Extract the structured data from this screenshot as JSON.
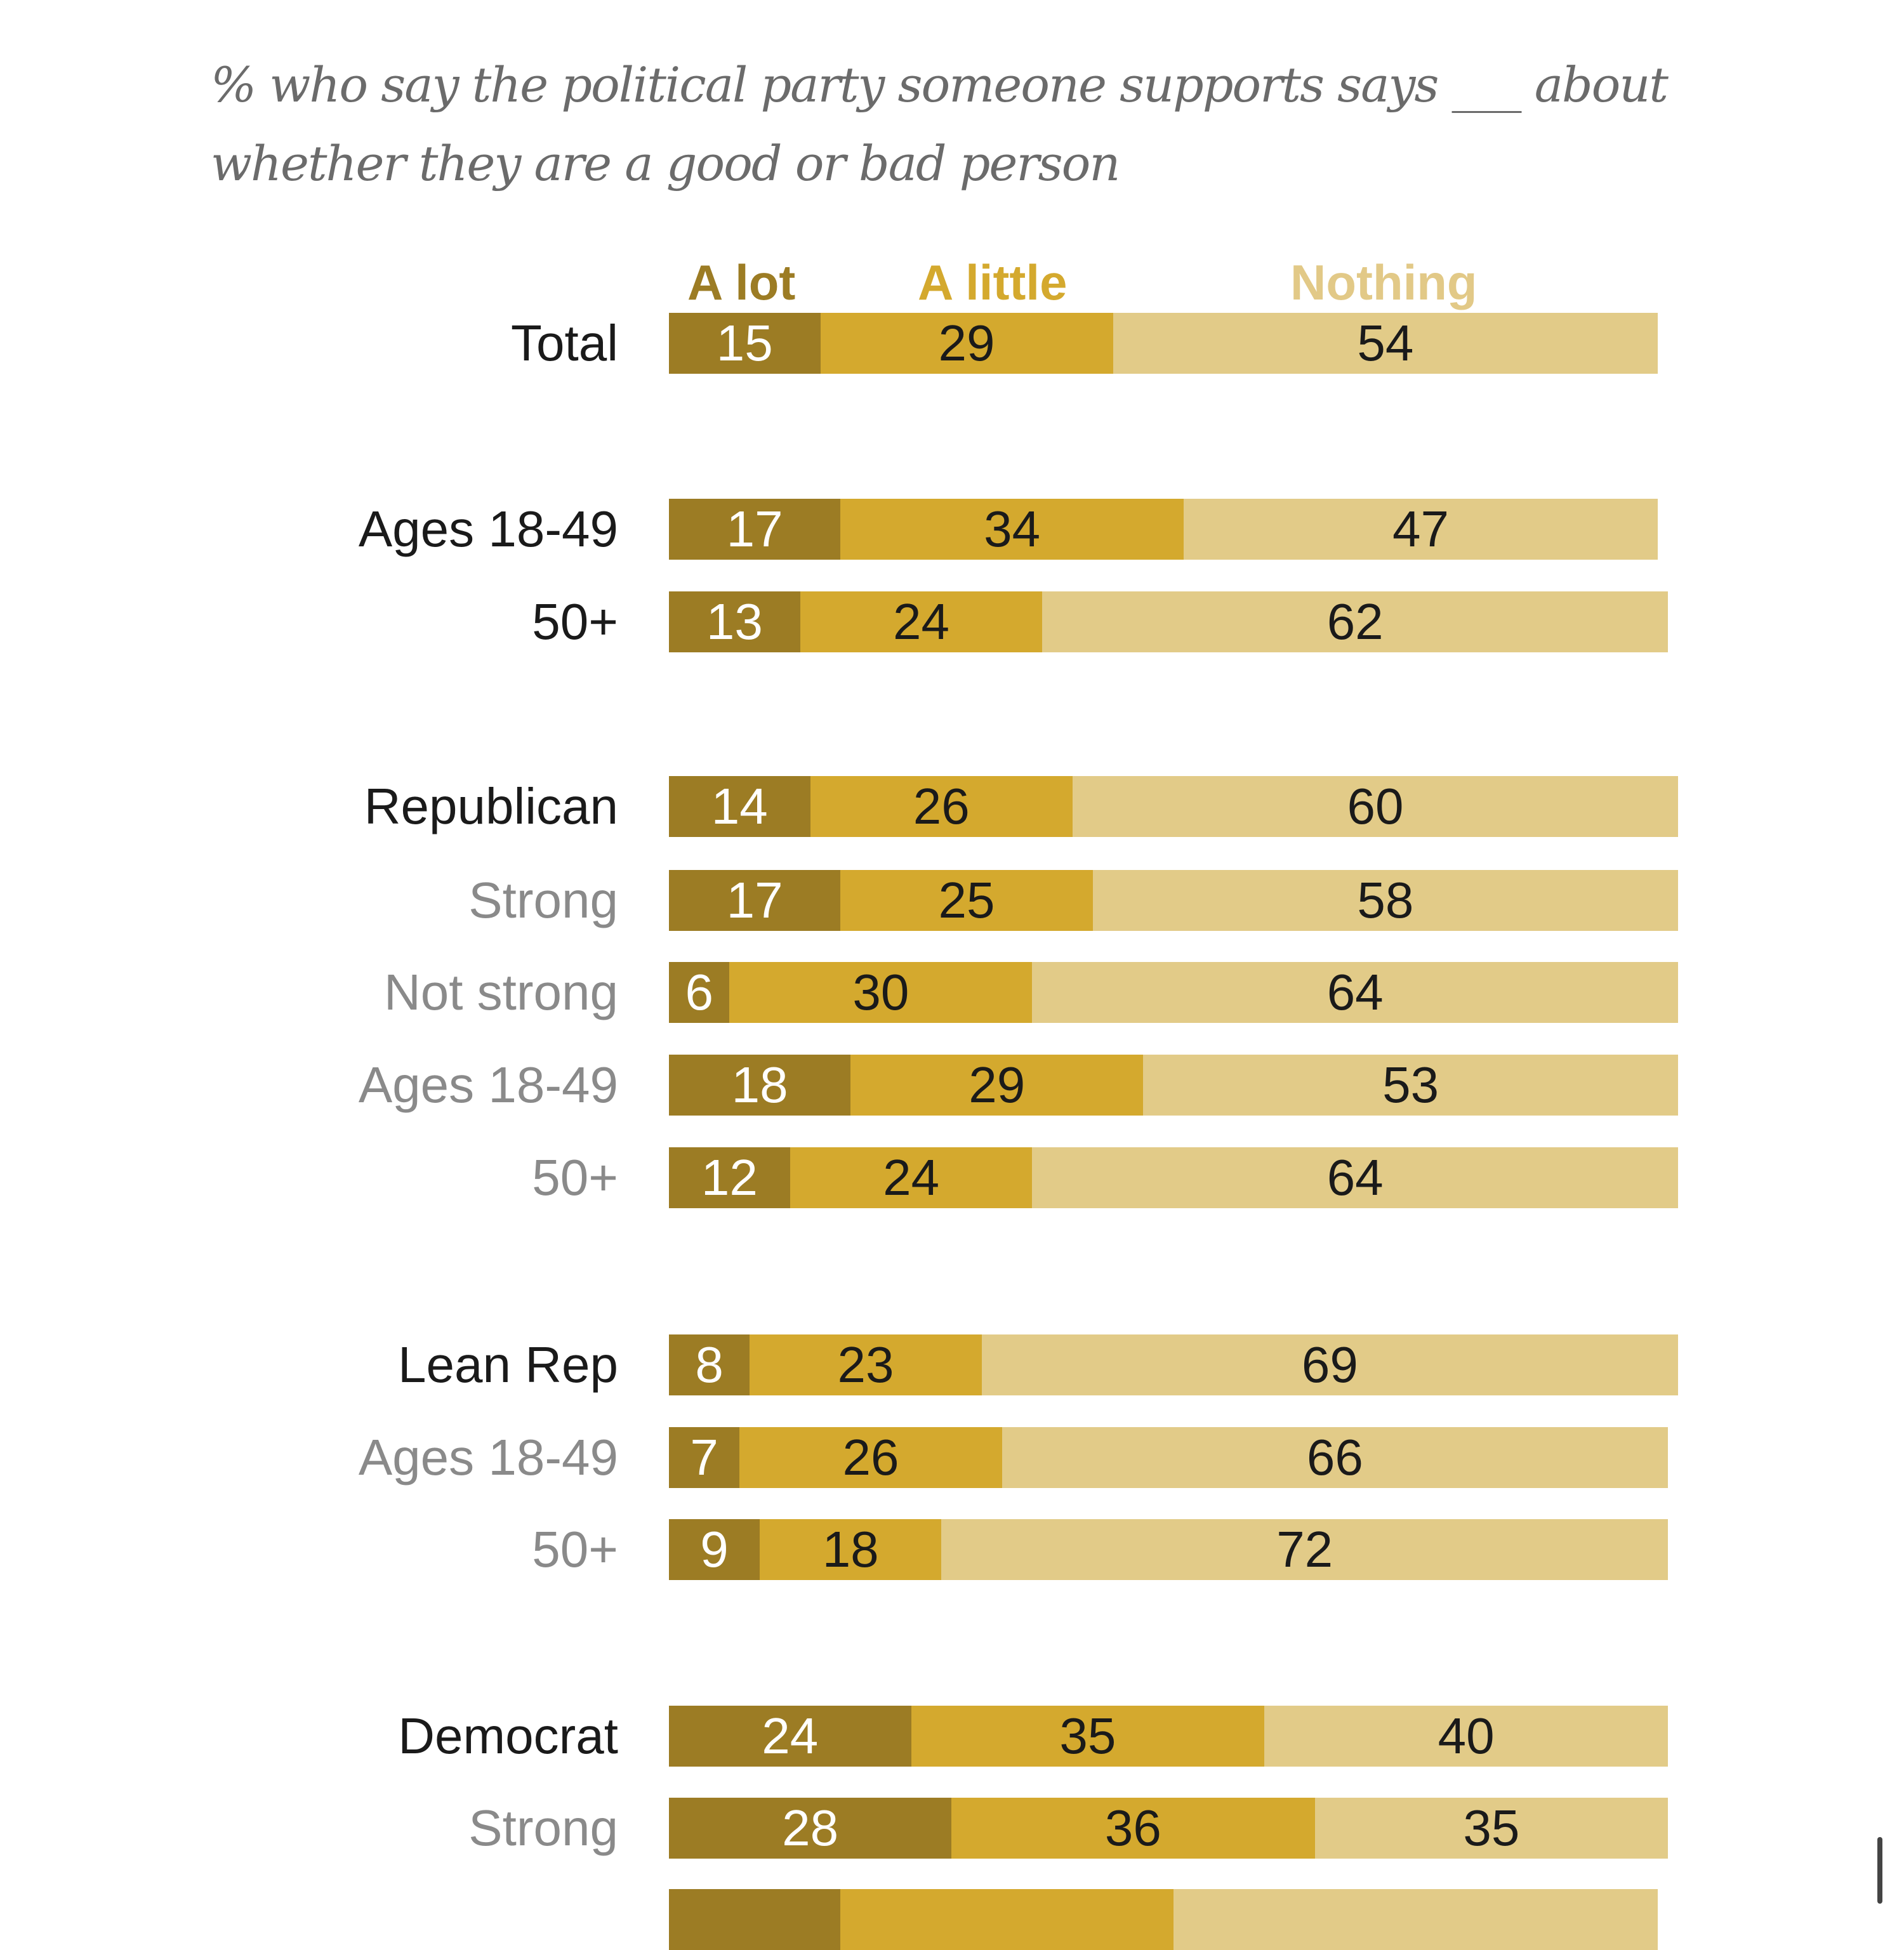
{
  "subtitle": "% who say the political party someone supports says ___ about whether they are a good or bad person",
  "colors": {
    "a_lot": "#9c7c24",
    "a_little": "#d4a92e",
    "nothing": "#e2cb88",
    "label_main": "#1a1a1a",
    "label_sub": "#8a8a8a"
  },
  "chart_data": {
    "type": "bar",
    "orientation": "horizontal-stacked",
    "title": "% who say the political party someone supports says ___ about whether they are a good or bad person",
    "series_names": [
      "A lot",
      "A little",
      "Nothing"
    ],
    "xlim": [
      0,
      100
    ],
    "rows": [
      {
        "label": "Total",
        "style": "main",
        "values": [
          15,
          29,
          54
        ]
      },
      {
        "label": "Ages 18-49",
        "style": "main",
        "values": [
          17,
          34,
          47
        ]
      },
      {
        "label": "50+",
        "style": "main",
        "values": [
          13,
          24,
          62
        ]
      },
      {
        "label": "Republican",
        "style": "main",
        "values": [
          14,
          26,
          60
        ]
      },
      {
        "label": "Strong",
        "style": "sub",
        "values": [
          17,
          25,
          58
        ]
      },
      {
        "label": "Not strong",
        "style": "sub",
        "values": [
          6,
          30,
          64
        ]
      },
      {
        "label": "Ages 18-49",
        "style": "sub",
        "values": [
          18,
          29,
          53
        ]
      },
      {
        "label": "50+",
        "style": "sub",
        "values": [
          12,
          24,
          64
        ]
      },
      {
        "label": "Lean Rep",
        "style": "main",
        "values": [
          8,
          23,
          69
        ]
      },
      {
        "label": "Ages 18-49",
        "style": "sub",
        "values": [
          7,
          26,
          66
        ]
      },
      {
        "label": "50+",
        "style": "sub",
        "values": [
          9,
          18,
          72
        ]
      },
      {
        "label": "Democrat",
        "style": "main",
        "values": [
          24,
          35,
          40
        ]
      },
      {
        "label": "Strong",
        "style": "sub",
        "values": [
          28,
          36,
          35
        ]
      },
      {
        "label": "",
        "style": "sub",
        "values": [
          17,
          33,
          48
        ],
        "partial": true
      }
    ]
  }
}
